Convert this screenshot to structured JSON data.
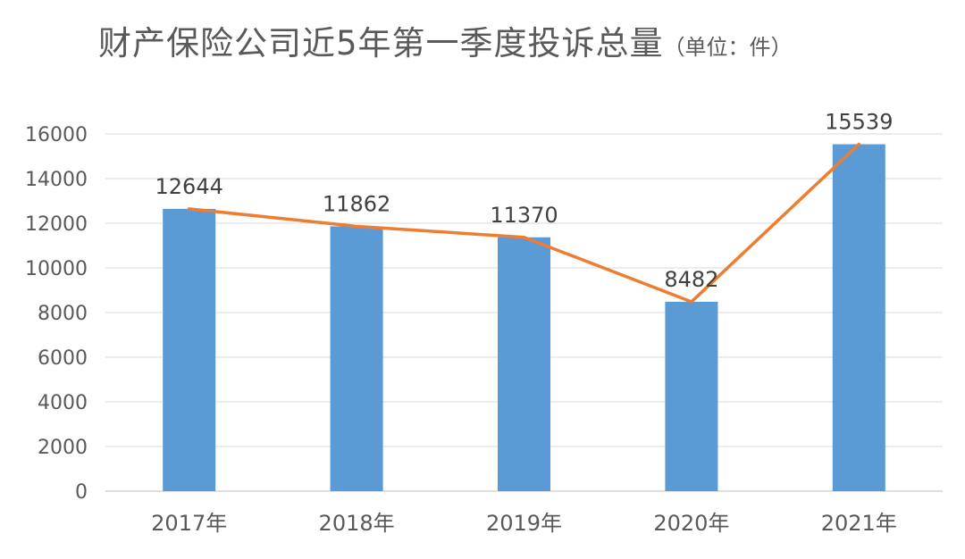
{
  "chart_data": {
    "type": "bar",
    "title": "财产保险公司近5年第一季度投诉总量",
    "unit_note": "（单位：件）",
    "categories": [
      "2017年",
      "2018年",
      "2019年",
      "2020年",
      "2021年"
    ],
    "series": [
      {
        "kind": "bar",
        "values": [
          12644,
          11862,
          11370,
          8482,
          15539
        ],
        "color": "#5b9bd5"
      },
      {
        "kind": "line",
        "values": [
          12644,
          11862,
          11370,
          8482,
          15539
        ],
        "color": "#ed7d31"
      }
    ],
    "data_labels": [
      "12644",
      "11862",
      "11370",
      "8482",
      "15539"
    ],
    "yticks": [
      0,
      2000,
      4000,
      6000,
      8000,
      10000,
      12000,
      14000,
      16000
    ],
    "ylim": [
      0,
      16000
    ],
    "grid": true,
    "legend": "none",
    "xlabel": "",
    "ylabel": ""
  }
}
